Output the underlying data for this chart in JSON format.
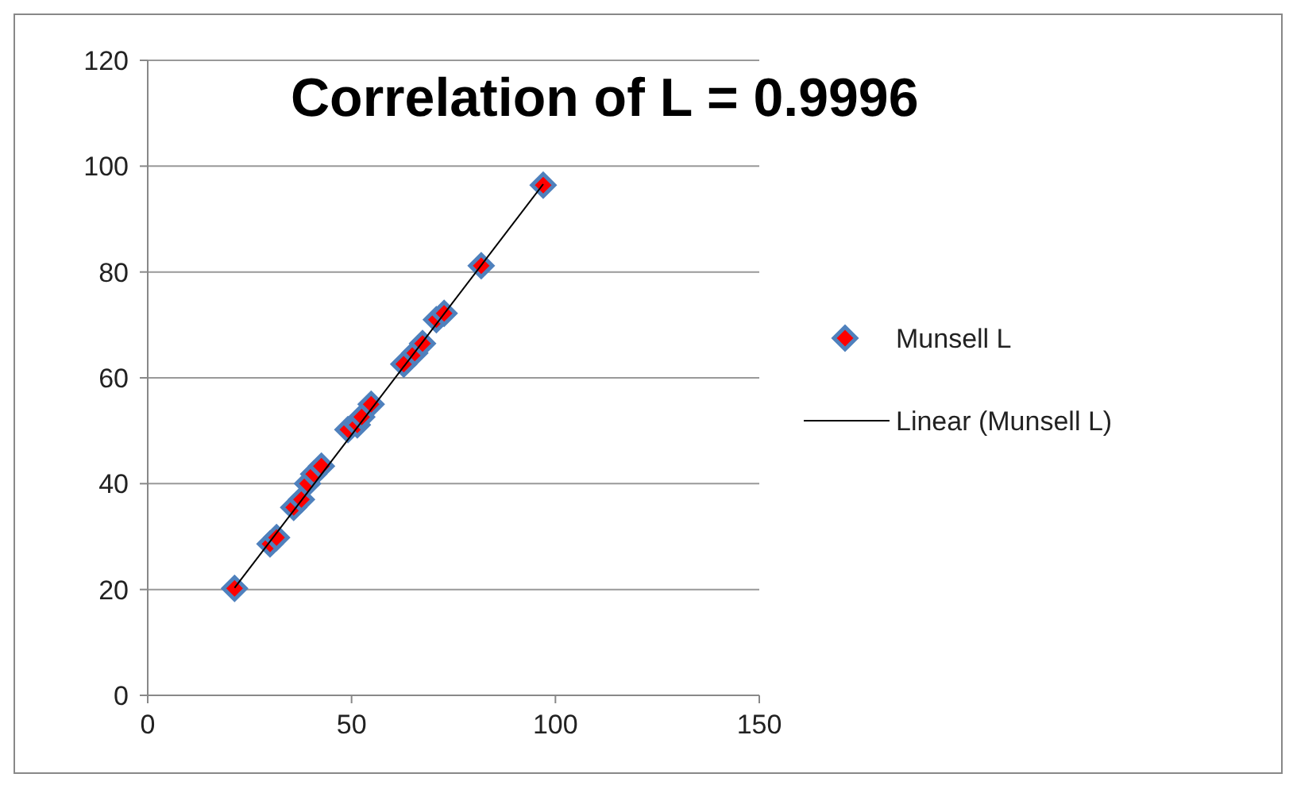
{
  "chart_data": {
    "type": "scatter",
    "title": "Correlation of L = 0.9996",
    "series": [
      {
        "name": "Munsell L",
        "color": "#ff0000",
        "marker": "diamond",
        "x": [
          21.3,
          30,
          31.6,
          35.8,
          37.7,
          39.2,
          40.7,
          42.6,
          49.1,
          51.4,
          52.5,
          54.8,
          62.8,
          65.5,
          67.4,
          70.8,
          72.7,
          81.8,
          97
        ],
        "values": [
          20.2,
          28.6,
          29.8,
          35.5,
          37,
          40,
          41.8,
          43.3,
          50.2,
          51.1,
          52.6,
          55,
          62.6,
          64.7,
          66.5,
          71,
          72.2,
          81.2,
          96.4
        ]
      },
      {
        "name": "Linear (Munsell L)",
        "type": "line",
        "color": "#000000",
        "marker": "none",
        "line_style": "solid",
        "x": [
          21.3,
          97
        ],
        "values": [
          20.3,
          96.6
        ]
      }
    ],
    "xlim": [
      0,
      150
    ],
    "xticks": [
      0,
      50,
      100,
      150
    ],
    "ylim": [
      0,
      120
    ],
    "yticks": [
      0,
      20,
      40,
      60,
      80,
      100,
      120
    ],
    "grid": "y",
    "legend": "right"
  }
}
